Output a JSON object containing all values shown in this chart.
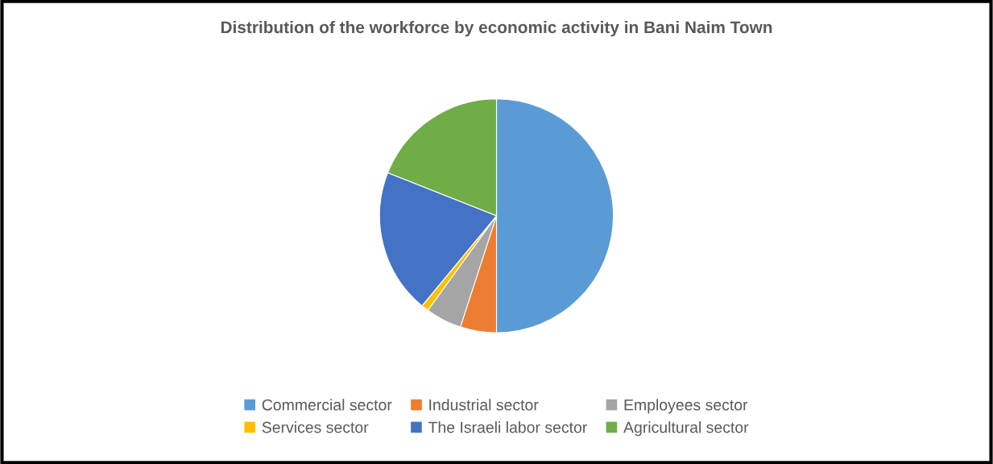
{
  "chart_data": {
    "type": "pie",
    "title": "Distribution of the workforce by economic activity in Bani Naim Town",
    "categories": [
      "Commercial sector",
      "Industrial sector",
      "Employees sector",
      "Services sector",
      "The Israeli labor sector",
      "Agricultural sector"
    ],
    "values": [
      50,
      5,
      5,
      1,
      20,
      19
    ],
    "colors": [
      "#5b9bd5",
      "#ed7d31",
      "#a5a5a5",
      "#ffc000",
      "#4472c4",
      "#70ad47"
    ],
    "legend": "bottom"
  }
}
